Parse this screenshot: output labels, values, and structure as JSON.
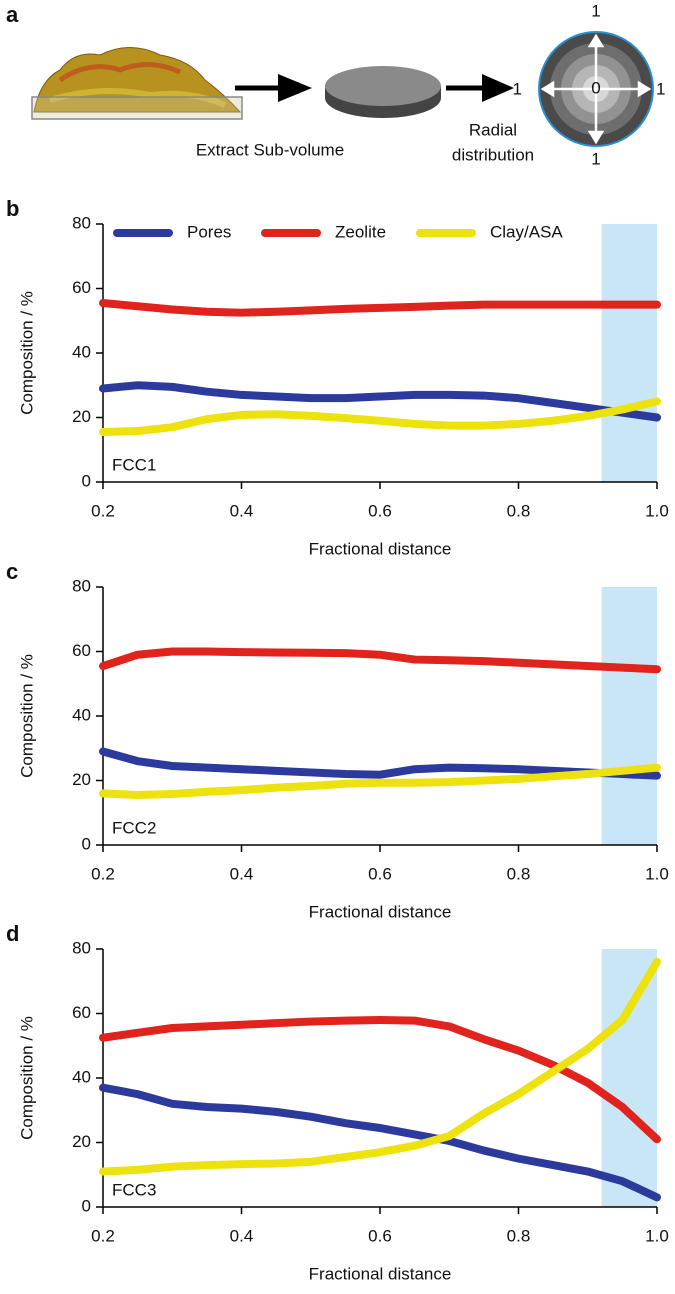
{
  "panel_a": {
    "label": "a",
    "step1": "Extract Sub-volume",
    "step2": [
      "Radial",
      "distribution"
    ],
    "radial_labels": {
      "top": "1",
      "left": "1",
      "right": "1",
      "bottom": "1",
      "center": "0"
    }
  },
  "chart_data": [
    {
      "type": "line",
      "panel": "b",
      "xlabel": "Fractional distance",
      "ylabel": "Composition / %",
      "annotation": "FCC1",
      "legend": true,
      "shade": [
        0.92,
        1.0
      ],
      "shade_color": "#c9e6f6",
      "x": [
        0.2,
        0.25,
        0.3,
        0.35,
        0.4,
        0.45,
        0.5,
        0.55,
        0.6,
        0.65,
        0.7,
        0.75,
        0.8,
        0.85,
        0.9,
        0.95,
        1.0
      ],
      "xlim": [
        0.2,
        1.0
      ],
      "xticks": [
        0.2,
        0.4,
        0.6,
        0.8,
        {
          "value": 1.0,
          "label": "1.0"
        }
      ],
      "ylim": [
        0,
        80
      ],
      "yticks": [
        0,
        20,
        40,
        60,
        80
      ],
      "series": [
        {
          "name": "Pores",
          "color": "#2b3a9c",
          "values": [
            29,
            30,
            29.5,
            28,
            27,
            26.5,
            26,
            26,
            26.5,
            27,
            27,
            26.8,
            26,
            24.5,
            23,
            21.5,
            20
          ]
        },
        {
          "name": "Zeolite",
          "color": "#e0231c",
          "values": [
            55.5,
            54.5,
            53.5,
            52.8,
            52.5,
            52.8,
            53.2,
            53.7,
            54,
            54.3,
            54.7,
            55,
            55,
            55,
            55,
            55,
            55
          ]
        },
        {
          "name": "Clay/ASA",
          "color": "#ede20e",
          "values": [
            15.5,
            15.8,
            17,
            19.5,
            20.8,
            21,
            20.5,
            19.8,
            19,
            18,
            17.5,
            17.5,
            18,
            19,
            20.5,
            22.5,
            25
          ]
        }
      ]
    },
    {
      "type": "line",
      "panel": "c",
      "xlabel": "Fractional distance",
      "ylabel": "Composition / %",
      "annotation": "FCC2",
      "legend": false,
      "shade": [
        0.92,
        1.0
      ],
      "shade_color": "#c9e6f6",
      "x": [
        0.2,
        0.25,
        0.3,
        0.35,
        0.4,
        0.45,
        0.5,
        0.55,
        0.6,
        0.65,
        0.7,
        0.75,
        0.8,
        0.85,
        0.9,
        0.95,
        1.0
      ],
      "xlim": [
        0.2,
        1.0
      ],
      "xticks": [
        0.2,
        0.4,
        0.6,
        0.8,
        {
          "value": 1.0,
          "label": "1.0"
        }
      ],
      "ylim": [
        0,
        80
      ],
      "yticks": [
        0,
        20,
        40,
        60,
        80
      ],
      "series": [
        {
          "color": "#2b3a9c",
          "values": [
            29,
            26,
            24.5,
            24,
            23.5,
            23,
            22.5,
            22,
            21.8,
            23.5,
            24,
            23.8,
            23.5,
            23,
            22.5,
            22,
            21.5
          ]
        },
        {
          "color": "#e0231c",
          "values": [
            55.5,
            59,
            60,
            60,
            59.8,
            59.7,
            59.6,
            59.5,
            59,
            57.5,
            57.3,
            57,
            56.5,
            56,
            55.5,
            55,
            54.5
          ]
        },
        {
          "color": "#ede20e",
          "values": [
            16,
            15.5,
            15.8,
            16.5,
            17,
            17.8,
            18.3,
            19,
            19.3,
            19.3,
            19.5,
            20,
            20.5,
            21.3,
            22,
            23,
            24
          ]
        }
      ]
    },
    {
      "type": "line",
      "panel": "d",
      "xlabel": "Fractional distance",
      "ylabel": "Composition / %",
      "annotation": "FCC3",
      "legend": false,
      "shade": [
        0.92,
        1.0
      ],
      "shade_color": "#c9e6f6",
      "x": [
        0.2,
        0.25,
        0.3,
        0.35,
        0.4,
        0.45,
        0.5,
        0.55,
        0.6,
        0.65,
        0.7,
        0.75,
        0.8,
        0.85,
        0.9,
        0.95,
        1.0
      ],
      "xlim": [
        0.2,
        1.0
      ],
      "xticks": [
        0.2,
        0.4,
        0.6,
        0.8,
        {
          "value": 1.0,
          "label": "1.0"
        }
      ],
      "ylim": [
        0,
        80
      ],
      "yticks": [
        0,
        20,
        40,
        60,
        80
      ],
      "series": [
        {
          "color": "#2b3a9c",
          "values": [
            37,
            35,
            32,
            31,
            30.5,
            29.5,
            28,
            26,
            24.5,
            22.5,
            20.5,
            17.5,
            15,
            13,
            11,
            8,
            3
          ]
        },
        {
          "color": "#e0231c",
          "values": [
            52.5,
            54,
            55.5,
            56,
            56.5,
            57,
            57.5,
            57.8,
            58,
            57.8,
            56,
            52,
            48.5,
            44,
            38.5,
            31,
            21
          ]
        },
        {
          "color": "#ede20e",
          "values": [
            11,
            11.5,
            12.5,
            13,
            13.3,
            13.5,
            14,
            15.5,
            17,
            19,
            22,
            29,
            35,
            42,
            49,
            58,
            76
          ]
        }
      ]
    }
  ]
}
